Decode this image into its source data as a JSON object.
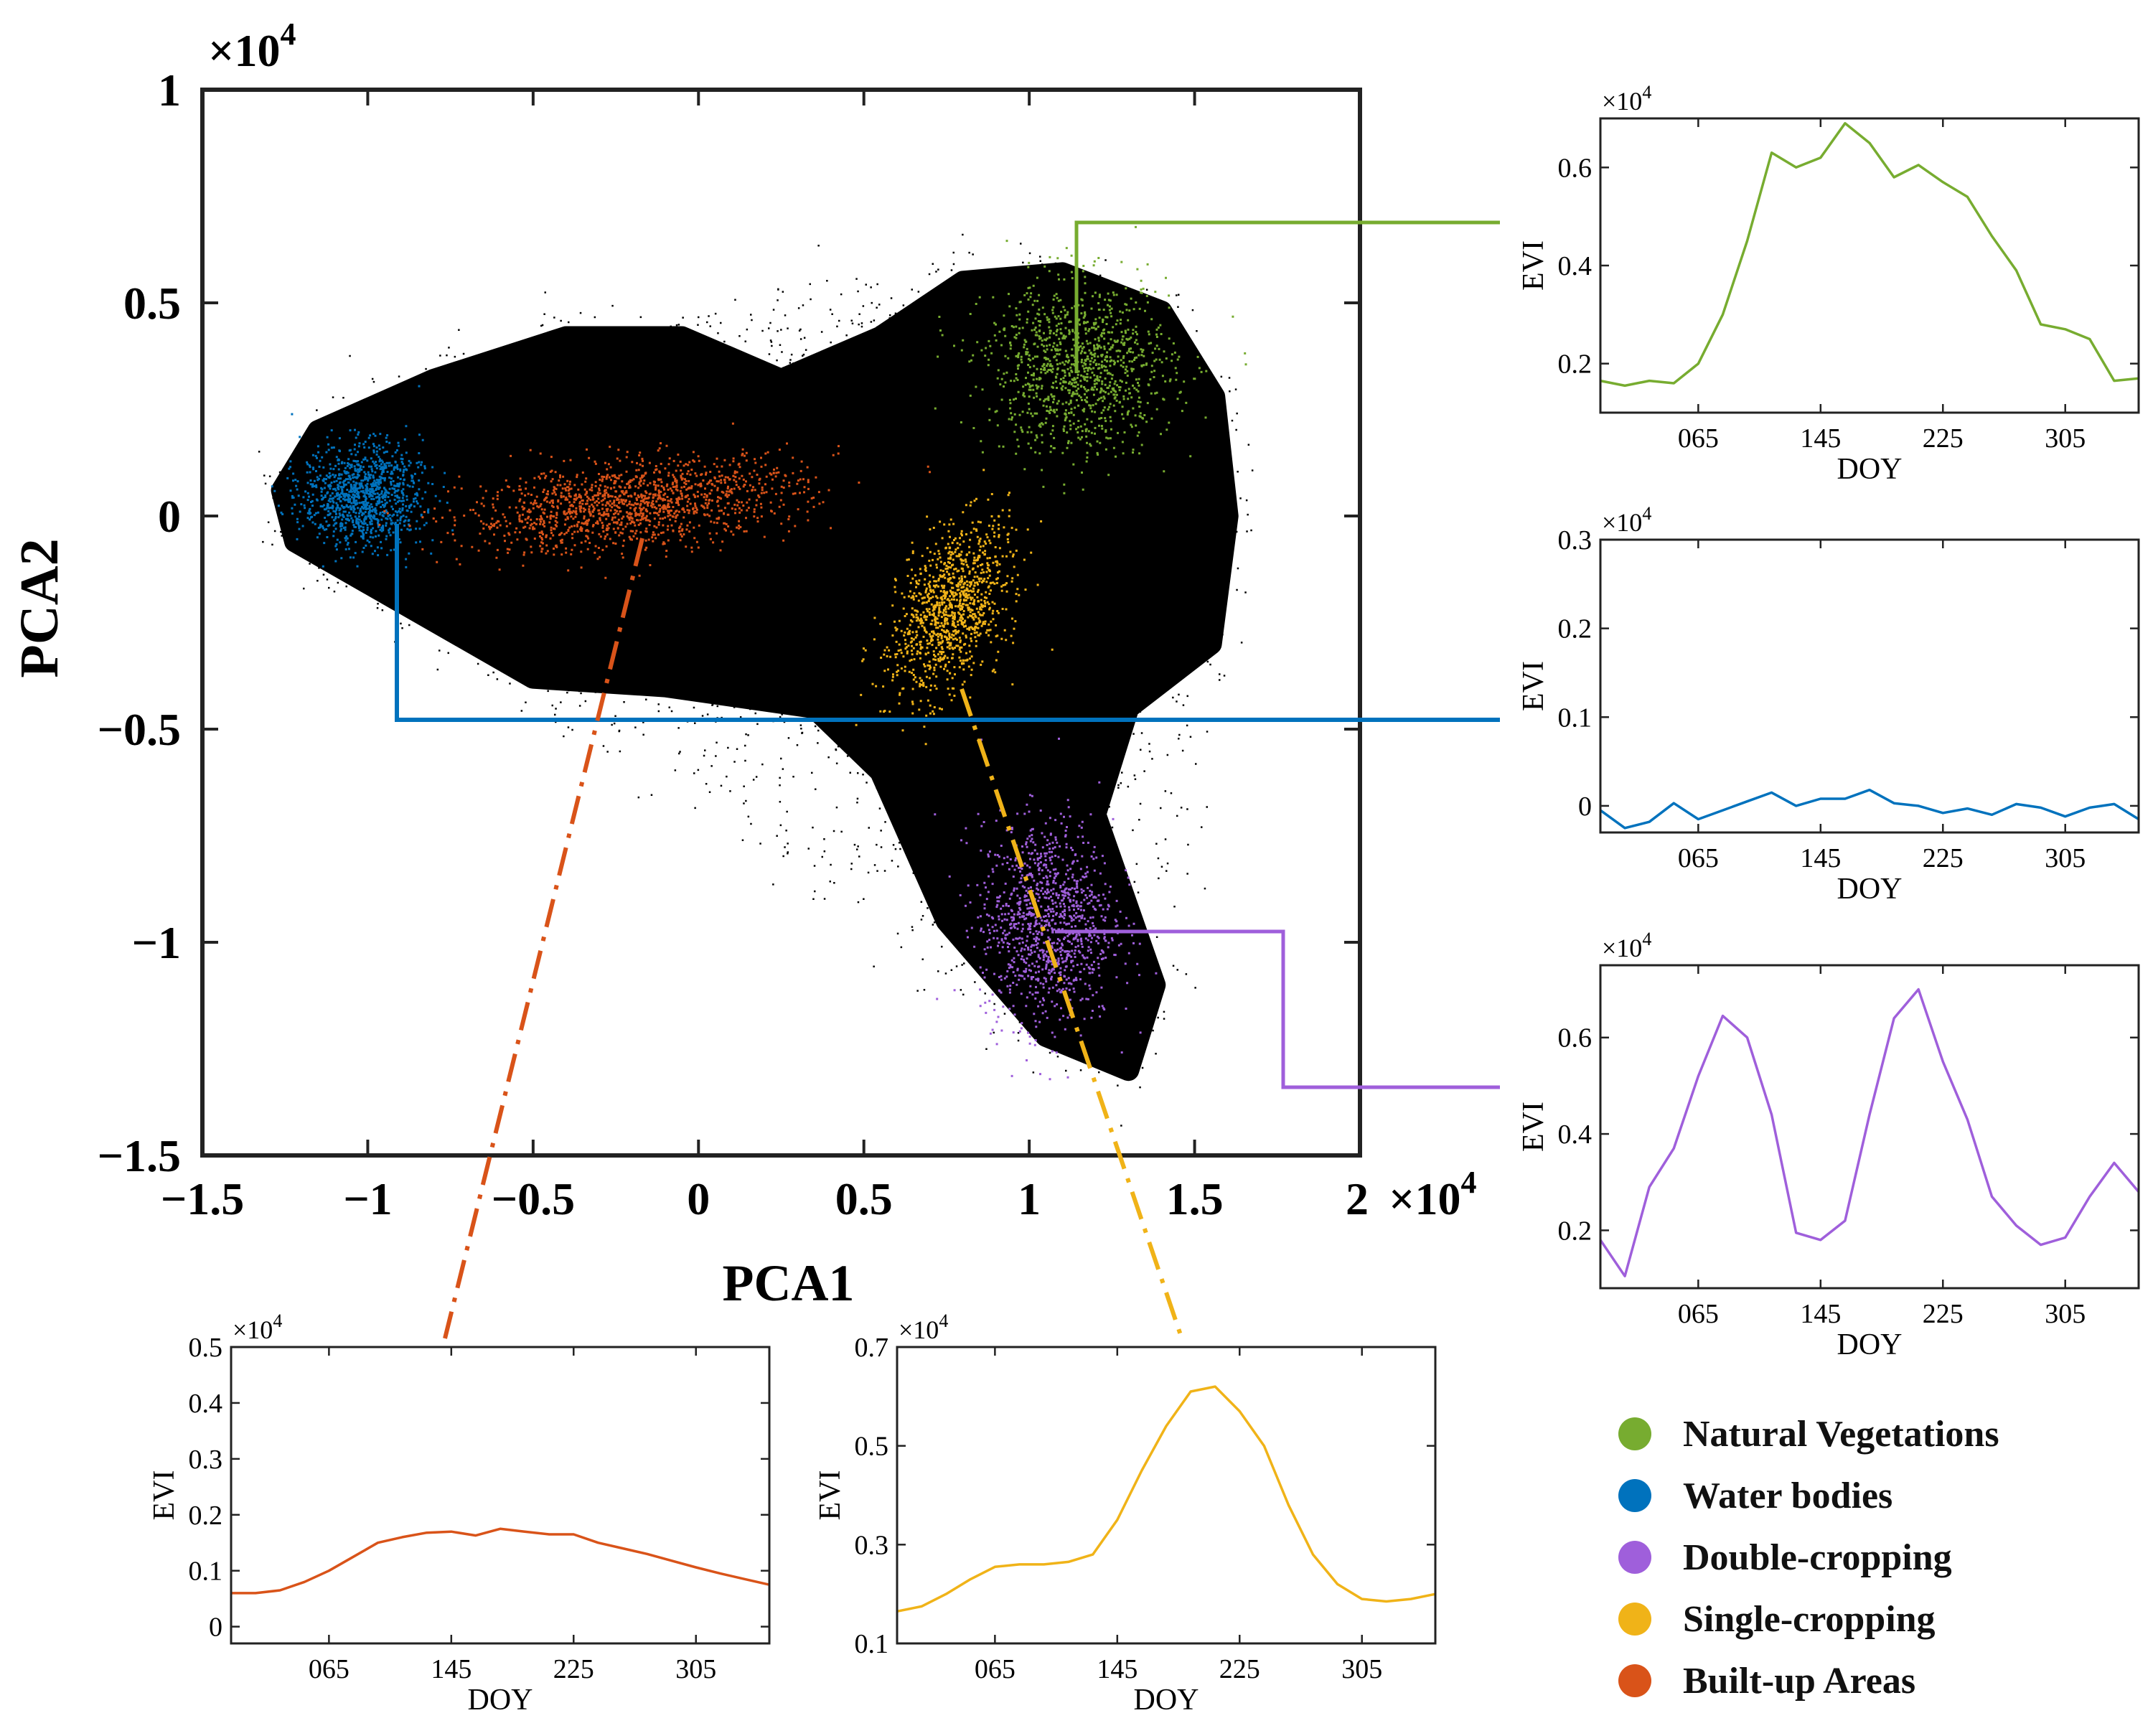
{
  "colors": {
    "natural": "#77AC30",
    "water": "#0072BD",
    "double": "#9F5FDB",
    "single": "#F0B318",
    "builtup": "#D95319",
    "background_points": "#000000"
  },
  "chart_data": [
    {
      "type": "scatter",
      "id": "pca",
      "xlabel": "PCA1",
      "ylabel": "PCA2",
      "xlim": [
        -1.5,
        2
      ],
      "ylim": [
        -1.5,
        1
      ],
      "x_ticks": [
        -1.5,
        -1,
        -0.5,
        0,
        0.5,
        1,
        1.5,
        2
      ],
      "x_tick_labels": [
        "−1.5",
        "−1",
        "−0.5",
        "0",
        "0.5",
        "1",
        "1.5",
        "2"
      ],
      "y_ticks": [
        1,
        0.5,
        0,
        -0.5,
        -1,
        -1.5
      ],
      "y_tick_labels": [
        "1",
        "0.5",
        "0",
        "−0.5",
        "−1",
        "−1.5"
      ],
      "y_exponent": "×10",
      "y_exponent_power": "4",
      "x_exponent": "×10",
      "x_exponent_power": "4",
      "clusters": [
        {
          "name": "Natural Vegetations",
          "color_key": "natural",
          "center": [
            1.15,
            0.35
          ],
          "spread": [
            0.14,
            0.1
          ]
        },
        {
          "name": "Water bodies",
          "color_key": "water",
          "center": [
            -1.02,
            0.05
          ],
          "spread": [
            0.09,
            0.06
          ]
        },
        {
          "name": "Double-cropping",
          "color_key": "double",
          "center": [
            1.05,
            -0.95
          ],
          "spread": [
            0.1,
            0.12
          ]
        },
        {
          "name": "Single-cropping",
          "color_key": "single",
          "center": [
            0.76,
            -0.22
          ],
          "spread": [
            0.08,
            0.1
          ]
        },
        {
          "name": "Built-up Areas",
          "color_key": "builtup",
          "center": [
            -0.2,
            0.03
          ],
          "spread": [
            0.25,
            0.05
          ]
        }
      ]
    },
    {
      "type": "line",
      "id": "natural",
      "color_key": "natural",
      "xlabel": "DOY",
      "ylabel": "EVI",
      "exponent": "×10",
      "exponent_power": "4",
      "xlim": [
        1,
        353
      ],
      "ylim": [
        0.1,
        0.7
      ],
      "x_ticks": [
        65,
        145,
        225,
        305
      ],
      "x_tick_labels": [
        "065",
        "145",
        "225",
        "305"
      ],
      "y_ticks": [
        0.2,
        0.4,
        0.6
      ],
      "y_tick_labels": [
        "0.2",
        "0.4",
        "0.6"
      ],
      "x": [
        1,
        17,
        33,
        49,
        65,
        81,
        97,
        113,
        129,
        145,
        161,
        177,
        193,
        209,
        225,
        241,
        257,
        273,
        289,
        305,
        321,
        337,
        353
      ],
      "values": [
        0.165,
        0.155,
        0.165,
        0.16,
        0.2,
        0.3,
        0.45,
        0.63,
        0.6,
        0.62,
        0.69,
        0.65,
        0.58,
        0.605,
        0.57,
        0.54,
        0.46,
        0.39,
        0.28,
        0.27,
        0.25,
        0.165,
        0.17
      ]
    },
    {
      "type": "line",
      "id": "water",
      "color_key": "water",
      "xlabel": "DOY",
      "ylabel": "EVI",
      "exponent": "×10",
      "exponent_power": "4",
      "xlim": [
        1,
        353
      ],
      "ylim": [
        -0.03,
        0.3
      ],
      "x_ticks": [
        65,
        145,
        225,
        305
      ],
      "x_tick_labels": [
        "065",
        "145",
        "225",
        "305"
      ],
      "y_ticks": [
        0,
        0.1,
        0.2,
        0.3
      ],
      "y_tick_labels": [
        "0",
        "0.1",
        "0.2",
        "0.3"
      ],
      "x": [
        1,
        17,
        33,
        49,
        65,
        81,
        97,
        113,
        129,
        145,
        161,
        177,
        193,
        209,
        225,
        241,
        257,
        273,
        289,
        305,
        321,
        337,
        353
      ],
      "values": [
        -0.005,
        -0.025,
        -0.018,
        0.003,
        -0.015,
        -0.005,
        0.005,
        0.015,
        0.0,
        0.008,
        0.008,
        0.018,
        0.003,
        0.0,
        -0.008,
        -0.003,
        -0.01,
        0.002,
        -0.002,
        -0.012,
        -0.002,
        0.002,
        -0.015
      ]
    },
    {
      "type": "line",
      "id": "double",
      "color_key": "double",
      "xlabel": "DOY",
      "ylabel": "EVI",
      "exponent": "×10",
      "exponent_power": "4",
      "xlim": [
        1,
        353
      ],
      "ylim": [
        0.08,
        0.75
      ],
      "x_ticks": [
        65,
        145,
        225,
        305
      ],
      "x_tick_labels": [
        "065",
        "145",
        "225",
        "305"
      ],
      "y_ticks": [
        0.2,
        0.4,
        0.6
      ],
      "y_tick_labels": [
        "0.2",
        "0.4",
        "0.6"
      ],
      "x": [
        1,
        17,
        33,
        49,
        65,
        81,
        97,
        113,
        129,
        145,
        161,
        177,
        193,
        209,
        225,
        241,
        257,
        273,
        289,
        305,
        321,
        337,
        353
      ],
      "values": [
        0.18,
        0.105,
        0.29,
        0.37,
        0.52,
        0.645,
        0.6,
        0.44,
        0.195,
        0.18,
        0.22,
        0.44,
        0.64,
        0.7,
        0.55,
        0.43,
        0.27,
        0.21,
        0.17,
        0.185,
        0.27,
        0.34,
        0.28
      ]
    },
    {
      "type": "line",
      "id": "builtup",
      "color_key": "builtup",
      "xlabel": "DOY",
      "ylabel": "EVI",
      "exponent": "×10",
      "exponent_power": "4",
      "xlim": [
        1,
        353
      ],
      "ylim": [
        -0.03,
        0.5
      ],
      "x_ticks": [
        65,
        145,
        225,
        305
      ],
      "x_tick_labels": [
        "065",
        "145",
        "225",
        "305"
      ],
      "y_ticks": [
        0,
        0.1,
        0.2,
        0.3,
        0.4,
        0.5
      ],
      "y_tick_labels": [
        "0",
        "0.1",
        "0.2",
        "0.3",
        "0.4",
        "0.5"
      ],
      "x": [
        1,
        17,
        33,
        49,
        65,
        81,
        97,
        113,
        129,
        145,
        161,
        177,
        193,
        209,
        225,
        241,
        257,
        273,
        289,
        305,
        321,
        337,
        353
      ],
      "values": [
        0.06,
        0.06,
        0.065,
        0.08,
        0.1,
        0.125,
        0.15,
        0.16,
        0.168,
        0.17,
        0.163,
        0.175,
        0.17,
        0.165,
        0.165,
        0.15,
        0.14,
        0.13,
        0.118,
        0.106,
        0.095,
        0.085,
        0.075
      ]
    },
    {
      "type": "line",
      "id": "single",
      "color_key": "single",
      "xlabel": "DOY",
      "ylabel": "EVI",
      "exponent": "×10",
      "exponent_power": "4",
      "xlim": [
        1,
        353
      ],
      "ylim": [
        0.1,
        0.7
      ],
      "x_ticks": [
        65,
        145,
        225,
        305
      ],
      "x_tick_labels": [
        "065",
        "145",
        "225",
        "305"
      ],
      "y_ticks": [
        0.1,
        0.3,
        0.5,
        0.7
      ],
      "y_tick_labels": [
        "0.1",
        "0.3",
        "0.5",
        "0.7"
      ],
      "x": [
        1,
        17,
        33,
        49,
        65,
        81,
        97,
        113,
        129,
        145,
        161,
        177,
        193,
        209,
        225,
        241,
        257,
        273,
        289,
        305,
        321,
        337,
        353
      ],
      "values": [
        0.165,
        0.175,
        0.2,
        0.23,
        0.255,
        0.26,
        0.26,
        0.265,
        0.28,
        0.35,
        0.45,
        0.54,
        0.61,
        0.62,
        0.57,
        0.5,
        0.38,
        0.28,
        0.22,
        0.19,
        0.185,
        0.19,
        0.2
      ]
    }
  ],
  "legend": [
    {
      "label": "Natural Vegetations",
      "color_key": "natural"
    },
    {
      "label": "Water bodies",
      "color_key": "water"
    },
    {
      "label": "Double-cropping",
      "color_key": "double"
    },
    {
      "label": "Single-cropping",
      "color_key": "single"
    },
    {
      "label": "Built-up Areas",
      "color_key": "builtup"
    }
  ]
}
